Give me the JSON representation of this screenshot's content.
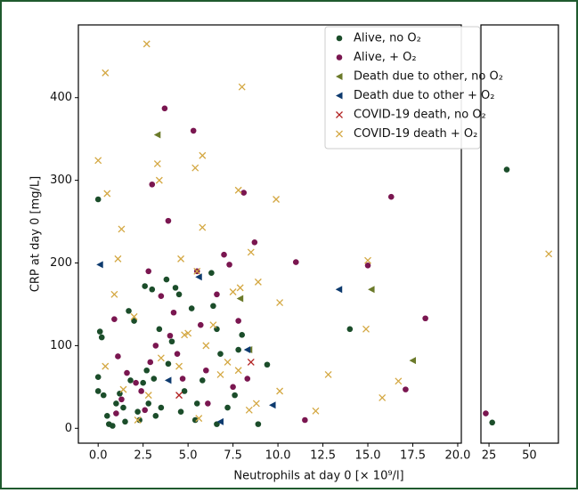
{
  "chart_data": [
    {
      "type": "scatter",
      "xlabel": "Neutrophils at day 0 [× 10⁹/l]",
      "ylabel": "CRP at day 0 [mg/L]",
      "xlim": [
        -1.1,
        20.2
      ],
      "ylim": [
        -18,
        488
      ],
      "xticks": [
        {
          "value": 0,
          "label": "0.0"
        },
        2.5,
        {
          "value": 5,
          "label": "5.0"
        },
        7.5,
        {
          "value": 10,
          "label": "10.0"
        },
        12.5,
        {
          "value": 15,
          "label": "15.0"
        },
        17.5,
        {
          "value": 20,
          "label": "20.0"
        }
      ],
      "yticks": [
        0,
        100,
        200,
        300,
        400
      ],
      "legend": "upper right",
      "series": [
        {
          "name": "Alive, no O₂",
          "color": "#1b4d2a",
          "marker": "circle",
          "x": [
            0,
            0.1,
            0.2,
            0,
            0,
            0.3,
            0.5,
            0.6,
            0.8,
            1,
            1.2,
            1.4,
            1.5,
            1.7,
            1.8,
            2,
            2.2,
            2.3,
            2.5,
            2.6,
            2.7,
            2.8,
            3,
            3.1,
            3.2,
            3.4,
            3.5,
            3.8,
            3.9,
            4.1,
            4.3,
            4.5,
            4.6,
            4.8,
            5.2,
            5.4,
            5.5,
            5.8,
            6.3,
            6.4,
            6.6,
            6.6,
            6.8,
            7.2,
            7.6,
            7.8,
            8,
            8.9,
            9.4,
            14
          ],
          "values": [
            277,
            117,
            110,
            62,
            45,
            40,
            15,
            5,
            3,
            30,
            42,
            25,
            8,
            142,
            58,
            130,
            20,
            10,
            55,
            172,
            70,
            30,
            168,
            60,
            15,
            120,
            25,
            180,
            78,
            105,
            170,
            162,
            20,
            45,
            145,
            10,
            30,
            58,
            188,
            148,
            120,
            5,
            90,
            25,
            40,
            95,
            113,
            5,
            77,
            120
          ]
        },
        {
          "name": "Alive, + O₂",
          "color": "#7a1650",
          "marker": "circle",
          "x": [
            0.9,
            1.1,
            1,
            1.3,
            1.6,
            2.1,
            2.4,
            2.6,
            2.8,
            2.9,
            3,
            3.2,
            3.5,
            3.7,
            3.9,
            4,
            4.2,
            4.4,
            4.7,
            5.3,
            5.5,
            5.7,
            6,
            6.1,
            6.6,
            7,
            7.3,
            7.5,
            7.8,
            8.1,
            8.7,
            8.3,
            11,
            11.5,
            15,
            16.3,
            17.1,
            18.2
          ],
          "values": [
            132,
            87,
            18,
            35,
            67,
            55,
            45,
            22,
            190,
            80,
            295,
            100,
            160,
            387,
            251,
            112,
            140,
            90,
            60,
            360,
            190,
            125,
            70,
            30,
            162,
            210,
            198,
            50,
            130,
            285,
            225,
            60,
            201,
            10,
            197,
            280,
            47,
            133
          ]
        },
        {
          "name": "Death due to other, no O₂",
          "color": "#6b7a2a",
          "marker": "triangle-left",
          "x": [
            3.3,
            7.9,
            8.4,
            15.2,
            17.5
          ],
          "values": [
            355,
            157,
            95,
            168,
            82
          ]
        },
        {
          "name": "Death due to other + O₂",
          "color": "#0d3a6e",
          "marker": "triangle-left",
          "x": [
            0.1,
            3.9,
            5.6,
            6.8,
            9.7,
            13.4,
            8.3
          ],
          "values": [
            198,
            58,
            183,
            8,
            28,
            168,
            95
          ]
        },
        {
          "name": "COVID-19 death, no O₂",
          "color": "#b22222",
          "marker": "x",
          "x": [
            4.5,
            8.5
          ],
          "values": [
            40,
            80
          ]
        },
        {
          "name": "COVID-19 death + O₂",
          "color": "#d4a843",
          "marker": "x",
          "x": [
            2.7,
            0.4,
            8,
            0,
            0.5,
            3.3,
            3.4,
            5.4,
            5.8,
            7.8,
            9.9,
            1.3,
            5.8,
            1.1,
            4.6,
            5.5,
            8.5,
            8.9,
            15,
            0.9,
            2,
            5,
            6.4,
            7.5,
            7.9,
            10.1,
            3.5,
            4.8,
            6,
            7.2,
            0.4,
            1.4,
            2.8,
            4.5,
            6.8,
            7.8,
            8.8,
            10.1,
            12.1,
            12.8,
            14.9,
            15.8,
            16.7,
            2.2,
            5.6,
            8.4
          ],
          "values": [
            465,
            430,
            413,
            324,
            284,
            320,
            300,
            315,
            330,
            288,
            277,
            241,
            243,
            205,
            205,
            190,
            213,
            177,
            203,
            162,
            135,
            115,
            125,
            165,
            170,
            152,
            85,
            113,
            100,
            80,
            75,
            47,
            40,
            75,
            65,
            70,
            30,
            45,
            21,
            65,
            120,
            37,
            57,
            10,
            12,
            22
          ]
        }
      ]
    },
    {
      "type": "scatter",
      "xlim": [
        20,
        68
      ],
      "ylim": [
        -18,
        488
      ],
      "xticks": [
        25,
        50
      ],
      "series": [
        {
          "color": "#1b4d2a",
          "marker": "circle",
          "x": [
            36,
            27
          ],
          "values": [
            313,
            7
          ]
        },
        {
          "color": "#7a1650",
          "marker": "circle",
          "x": [
            23
          ],
          "values": [
            18
          ]
        },
        {
          "color": "#d4a843",
          "marker": "x",
          "x": [
            62
          ],
          "values": [
            211
          ]
        }
      ]
    }
  ]
}
